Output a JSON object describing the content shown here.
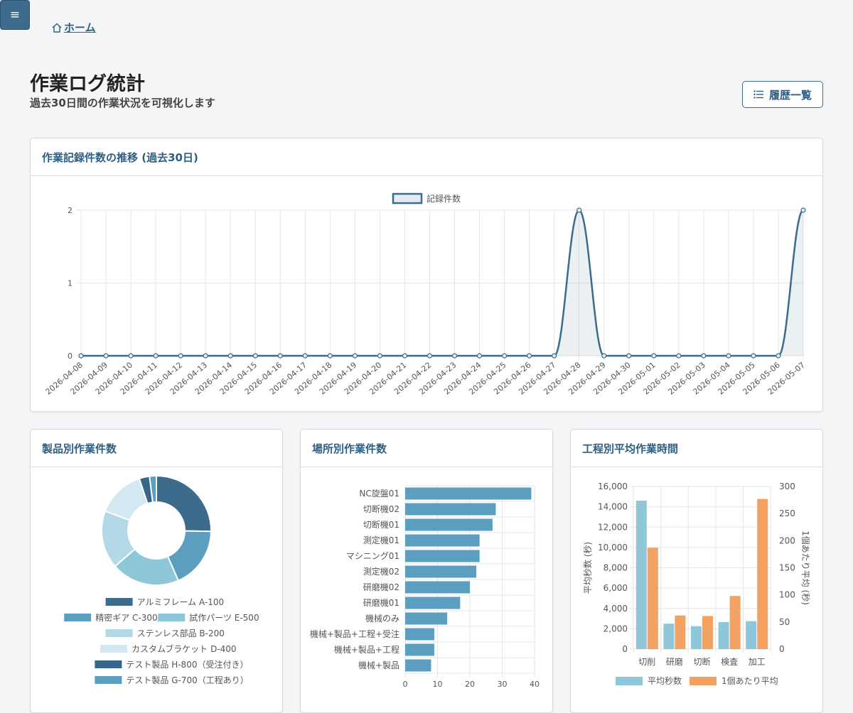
{
  "nav": {
    "menu_icon": "≡",
    "home_label": "ホーム"
  },
  "page": {
    "title": "作業ログ統計",
    "subtitle": "過去30日間の作業状況を可視化します",
    "history_button": "履歴一覧"
  },
  "colors": {
    "primary": "#3d6b8c",
    "bar_blue": "#5b9ebf",
    "teal_light": "#8ec7d9",
    "orange": "#f4a261"
  },
  "cards": {
    "trend_title": "作業記録件数の推移 (過去30日)",
    "product_title": "製品別作業件数",
    "location_title": "場所別作業件数",
    "process_title": "工程別平均作業時間"
  },
  "chart_data": [
    {
      "type": "line",
      "x": [
        "2026-04-08",
        "2026-04-09",
        "2026-04-10",
        "2026-04-11",
        "2026-04-12",
        "2026-04-13",
        "2026-04-14",
        "2026-04-15",
        "2026-04-16",
        "2026-04-17",
        "2026-04-18",
        "2026-04-19",
        "2026-04-20",
        "2026-04-21",
        "2026-04-22",
        "2026-04-23",
        "2026-04-24",
        "2026-04-25",
        "2026-04-26",
        "2026-04-27",
        "2026-04-28",
        "2026-04-29",
        "2026-04-30",
        "2026-05-01",
        "2026-05-02",
        "2026-05-03",
        "2026-05-04",
        "2026-05-05",
        "2026-05-06",
        "2026-05-07"
      ],
      "series": [
        {
          "name": "記録件数",
          "values": [
            0,
            0,
            0,
            0,
            0,
            0,
            0,
            0,
            0,
            0,
            0,
            0,
            0,
            0,
            0,
            0,
            0,
            0,
            0,
            0,
            2,
            0,
            0,
            0,
            0,
            0,
            0,
            0,
            0,
            2
          ],
          "color": "#3d6b8c"
        }
      ],
      "yticks": [
        0,
        1,
        2
      ],
      "ylim": [
        0,
        2
      ],
      "legend": "top",
      "grid": true
    },
    {
      "type": "pie",
      "categories": [
        "アルミフレーム A-100",
        "精密ギア C-300",
        "試作パーツ E-500",
        "ステンレス部品 B-200",
        "カスタムブラケット D-400",
        "テスト製品 H-800（受注付き）",
        "テスト製品 G-700（工程あり）"
      ],
      "values": [
        25,
        18,
        20,
        17,
        14,
        3,
        2
      ],
      "colors": [
        "#3d6b8c",
        "#5b9ebf",
        "#8ec7d9",
        "#b3d9e6",
        "#d3e8f0",
        "#36668a",
        "#5b9ebf"
      ],
      "legend": "bottom"
    },
    {
      "type": "bar",
      "orientation": "horizontal",
      "categories": [
        "NC旋盤01",
        "切断機02",
        "切断機01",
        "測定機01",
        "マシニング01",
        "測定機02",
        "研磨機02",
        "研磨機01",
        "機械のみ",
        "機械+製品+工程+受注",
        "機械+製品+工程",
        "機械+製品"
      ],
      "values": [
        39,
        28,
        27,
        23,
        23,
        22,
        20,
        17,
        13,
        9,
        9,
        8
      ],
      "color": "#5b9ebf",
      "xticks": [
        0,
        10,
        20,
        30,
        40
      ],
      "xlim": [
        0,
        40
      ]
    },
    {
      "type": "bar",
      "categories": [
        "切削",
        "研磨",
        "切断",
        "検査",
        "加工"
      ],
      "series": [
        {
          "name": "平均秒数",
          "values": [
            14600,
            2500,
            2250,
            2650,
            2750
          ],
          "axis": "left",
          "color": "#8ec7d9"
        },
        {
          "name": "1個あたり平均",
          "values": [
            187,
            62,
            61,
            98,
            277
          ],
          "axis": "right",
          "color": "#f4a261"
        }
      ],
      "ylabel": "平均秒数 (秒)",
      "y2label": "1個あたり平均 (秒)",
      "ylim": [
        0,
        16000
      ],
      "y2lim": [
        0,
        300
      ],
      "yticks": [
        "0",
        "2,000",
        "4,000",
        "6,000",
        "8,000",
        "10,000",
        "12,000",
        "14,000",
        "16,000"
      ],
      "y2ticks": [
        "0",
        "50",
        "100",
        "150",
        "200",
        "250",
        "300"
      ],
      "legend": "bottom"
    }
  ]
}
